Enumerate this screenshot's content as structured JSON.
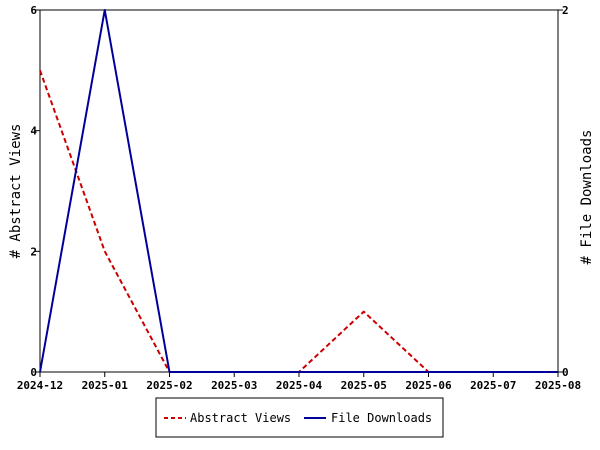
{
  "chart_data": {
    "type": "line",
    "title": "",
    "x": [
      "2024-12",
      "2025-01",
      "2025-02",
      "2025-03",
      "2025-04",
      "2025-05",
      "2025-06",
      "2025-07",
      "2025-08"
    ],
    "series": [
      {
        "name": "Abstract Views",
        "values": [
          5,
          2,
          0,
          0,
          0,
          1,
          0,
          0,
          0
        ],
        "axis": "left",
        "color": "#cc0000",
        "style": "dashed"
      },
      {
        "name": "File Downloads",
        "values": [
          0,
          2,
          0,
          0,
          0,
          0,
          0,
          0,
          0
        ],
        "axis": "right",
        "color": "#000099",
        "style": "solid"
      }
    ],
    "ylabel_left": "# Abstract Views",
    "ylabel_right": "# File Downloads",
    "ylim_left": [
      0,
      6
    ],
    "ylim_right": [
      0,
      2
    ],
    "yticks_left": [
      "0",
      "2",
      "4",
      "6"
    ],
    "yticks_right": [
      "0",
      "2"
    ],
    "grid": false,
    "legend_position": "bottom-center"
  }
}
